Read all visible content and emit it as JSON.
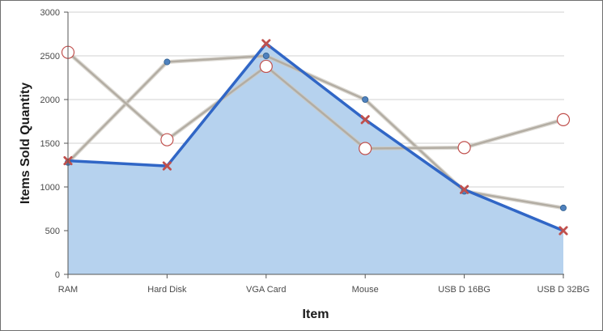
{
  "chart_data": {
    "type": "line",
    "title": "",
    "xlabel": "Item",
    "ylabel": "Items Sold Quantity",
    "categories": [
      "RAM",
      "Hard Disk",
      "VGA Card",
      "Mouse",
      "USB D 16BG",
      "USB D 32BG"
    ],
    "ylim": [
      0,
      3000
    ],
    "yticks": [
      0,
      500,
      1000,
      1500,
      2000,
      2500,
      3000
    ],
    "grid": true,
    "series": [
      {
        "values": [
          1300,
          1240,
          2640,
          1770,
          970,
          500
        ],
        "style": "area",
        "line_color": "#3066c6",
        "fill_color": "#b6d2ee",
        "marker": "x",
        "marker_color": "#c0504d"
      },
      {
        "values": [
          1280,
          2430,
          2500,
          2000,
          950,
          760
        ],
        "style": "line",
        "line_color": "#b3ada3",
        "marker": "circle-small",
        "marker_color": "#4f81bd"
      },
      {
        "values": [
          2540,
          1540,
          2380,
          1440,
          1450,
          1770
        ],
        "style": "line",
        "line_color": "#b3ada3",
        "marker": "circle-large",
        "marker_color": "#ffffff",
        "marker_stroke": "#c0504d"
      }
    ]
  }
}
